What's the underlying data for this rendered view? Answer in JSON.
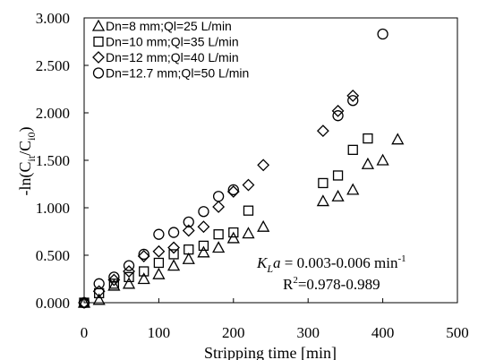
{
  "chart_data": {
    "type": "scatter",
    "xlabel": "Stripping time [min]",
    "ylabel_parts": {
      "main": "-ln(C",
      "sub1": "it",
      "mid": "/C",
      "sub2": "i0",
      "end": ")"
    },
    "xlim": [
      0,
      500
    ],
    "ylim": [
      0,
      3
    ],
    "x_ticks": [
      0,
      100,
      200,
      300,
      400,
      500
    ],
    "y_ticks": [
      0,
      0.5,
      1,
      1.5,
      2,
      2.5,
      3
    ],
    "x_tick_labels": [
      "0",
      "100",
      "200",
      "300",
      "400",
      "500"
    ],
    "y_tick_labels": [
      "0.000",
      "0.500",
      "1.000",
      "1.500",
      "2.000",
      "2.500",
      "3.000"
    ],
    "grid": false,
    "legend_position": "top-left",
    "series": [
      {
        "name": "Dn=8 mm;Ql=25 L/min",
        "marker": "triangle",
        "points": [
          [
            0,
            0
          ],
          [
            20,
            0.03
          ],
          [
            40,
            0.18
          ],
          [
            60,
            0.2
          ],
          [
            80,
            0.25
          ],
          [
            100,
            0.3
          ],
          [
            120,
            0.39
          ],
          [
            140,
            0.46
          ],
          [
            160,
            0.53
          ],
          [
            180,
            0.58
          ],
          [
            200,
            0.68
          ],
          [
            220,
            0.73
          ],
          [
            240,
            0.8
          ],
          [
            320,
            1.07
          ],
          [
            340,
            1.12
          ],
          [
            360,
            1.19
          ],
          [
            380,
            1.46
          ],
          [
            400,
            1.5
          ],
          [
            420,
            1.72
          ]
        ]
      },
      {
        "name": "Dn=10 mm;Ql=35 L/min",
        "marker": "square",
        "points": [
          [
            0,
            0
          ],
          [
            20,
            0.1
          ],
          [
            40,
            0.2
          ],
          [
            60,
            0.27
          ],
          [
            80,
            0.33
          ],
          [
            100,
            0.42
          ],
          [
            120,
            0.51
          ],
          [
            140,
            0.56
          ],
          [
            160,
            0.6
          ],
          [
            180,
            0.72
          ],
          [
            200,
            0.74
          ],
          [
            220,
            0.97
          ],
          [
            320,
            1.26
          ],
          [
            340,
            1.34
          ],
          [
            360,
            1.61
          ],
          [
            380,
            1.73
          ]
        ]
      },
      {
        "name": "Dn=12 mm;Ql=40 L/min",
        "marker": "diamond",
        "points": [
          [
            0,
            0
          ],
          [
            20,
            0.12
          ],
          [
            40,
            0.24
          ],
          [
            60,
            0.33
          ],
          [
            80,
            0.49
          ],
          [
            100,
            0.54
          ],
          [
            120,
            0.58
          ],
          [
            140,
            0.76
          ],
          [
            160,
            0.8
          ],
          [
            180,
            1.01
          ],
          [
            200,
            1.17
          ],
          [
            220,
            1.24
          ],
          [
            240,
            1.45
          ],
          [
            320,
            1.81
          ],
          [
            340,
            2.02
          ],
          [
            360,
            2.18
          ]
        ]
      },
      {
        "name": "Dn=12.7 mm;Ql=50 L/min",
        "marker": "circle",
        "points": [
          [
            0,
            0
          ],
          [
            20,
            0.2
          ],
          [
            40,
            0.27
          ],
          [
            60,
            0.39
          ],
          [
            80,
            0.51
          ],
          [
            100,
            0.72
          ],
          [
            120,
            0.74
          ],
          [
            140,
            0.85
          ],
          [
            160,
            0.96
          ],
          [
            180,
            1.12
          ],
          [
            200,
            1.19
          ],
          [
            340,
            1.97
          ],
          [
            360,
            2.13
          ],
          [
            400,
            2.83
          ]
        ]
      }
    ],
    "annotation": {
      "kla_symbol_K": "K",
      "kla_symbol_sub": "L",
      "kla_symbol_a": "a",
      "kla_value": " = 0.003-0.006 min",
      "kla_exp": "-1",
      "r2_label": "R",
      "r2_exp": "2",
      "r2_value": "=0.978-0.989"
    }
  }
}
